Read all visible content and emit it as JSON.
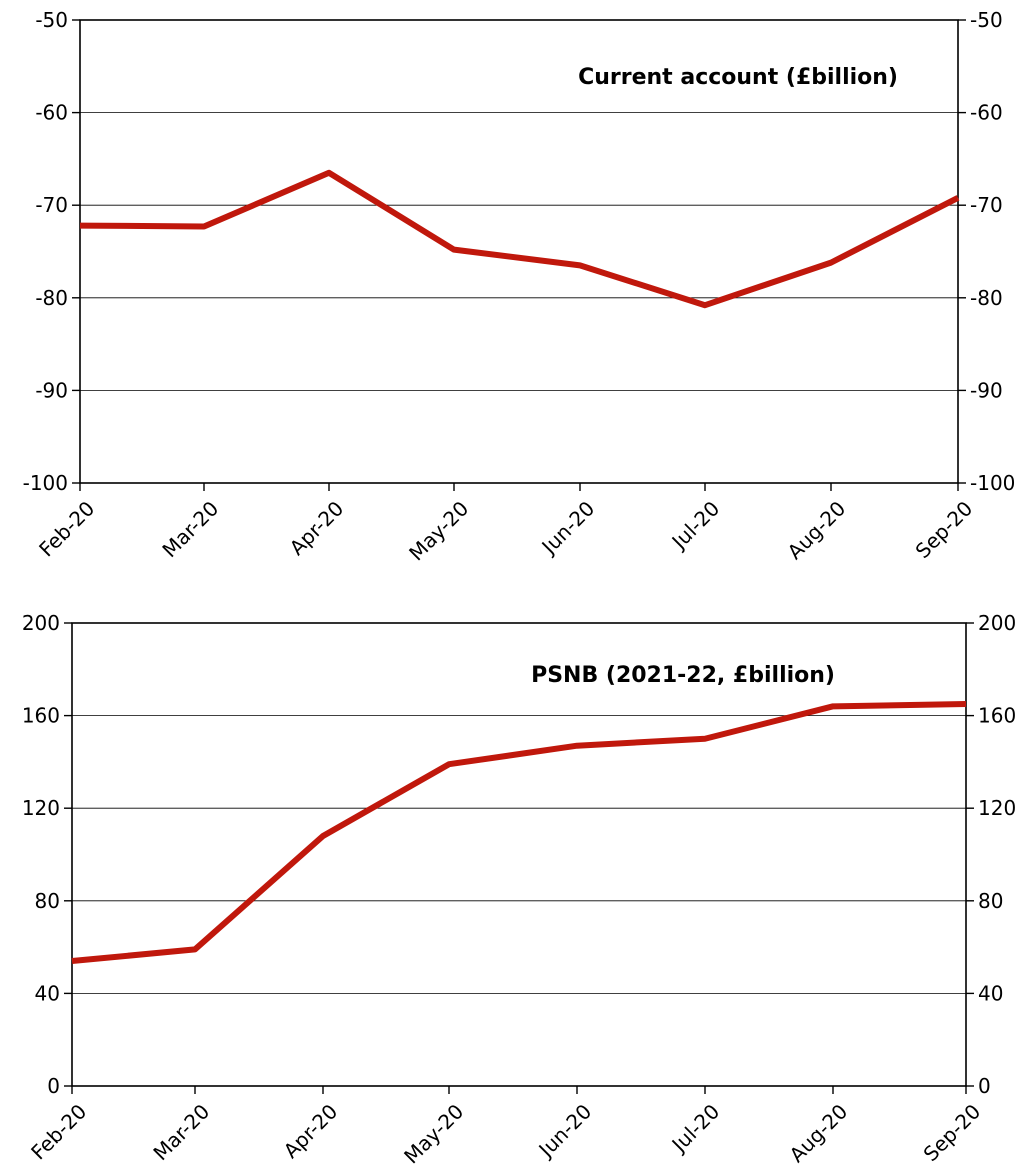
{
  "chart_data": [
    {
      "type": "line",
      "title": "Current account (£billion)",
      "categories": [
        "Feb-20",
        "Mar-20",
        "Apr-20",
        "May-20",
        "Jun-20",
        "Jul-20",
        "Aug-20",
        "Sep-20"
      ],
      "series": [
        {
          "values": [
            -72.2,
            -72.3,
            -66.5,
            -74.8,
            -76.5,
            -80.8,
            -76.2,
            -69.2
          ]
        }
      ],
      "ylim": [
        -100,
        -50
      ],
      "yticks": [
        -100,
        -90,
        -80,
        -70,
        -60,
        -50
      ],
      "ytick_labels": [
        "-100",
        "-90",
        "-80",
        "-70",
        "-60",
        "-50"
      ],
      "grid": true,
      "secondary_y_axis": true,
      "series_color": "#c0180c"
    },
    {
      "type": "line",
      "title": "PSNB (2021-22, £billion)",
      "categories": [
        "Feb-20",
        "Mar-20",
        "Apr-20",
        "May-20",
        "Jun-20",
        "Jul-20",
        "Aug-20",
        "Sep-20"
      ],
      "series": [
        {
          "values": [
            54,
            59,
            108,
            139,
            147,
            150,
            164,
            165
          ]
        }
      ],
      "ylim": [
        0,
        200
      ],
      "yticks": [
        0,
        40,
        80,
        120,
        160,
        200
      ],
      "ytick_labels": [
        "0",
        "40",
        "80",
        "120",
        "160",
        "200"
      ],
      "grid": true,
      "secondary_y_axis": true,
      "series_color": "#c0180c"
    }
  ]
}
